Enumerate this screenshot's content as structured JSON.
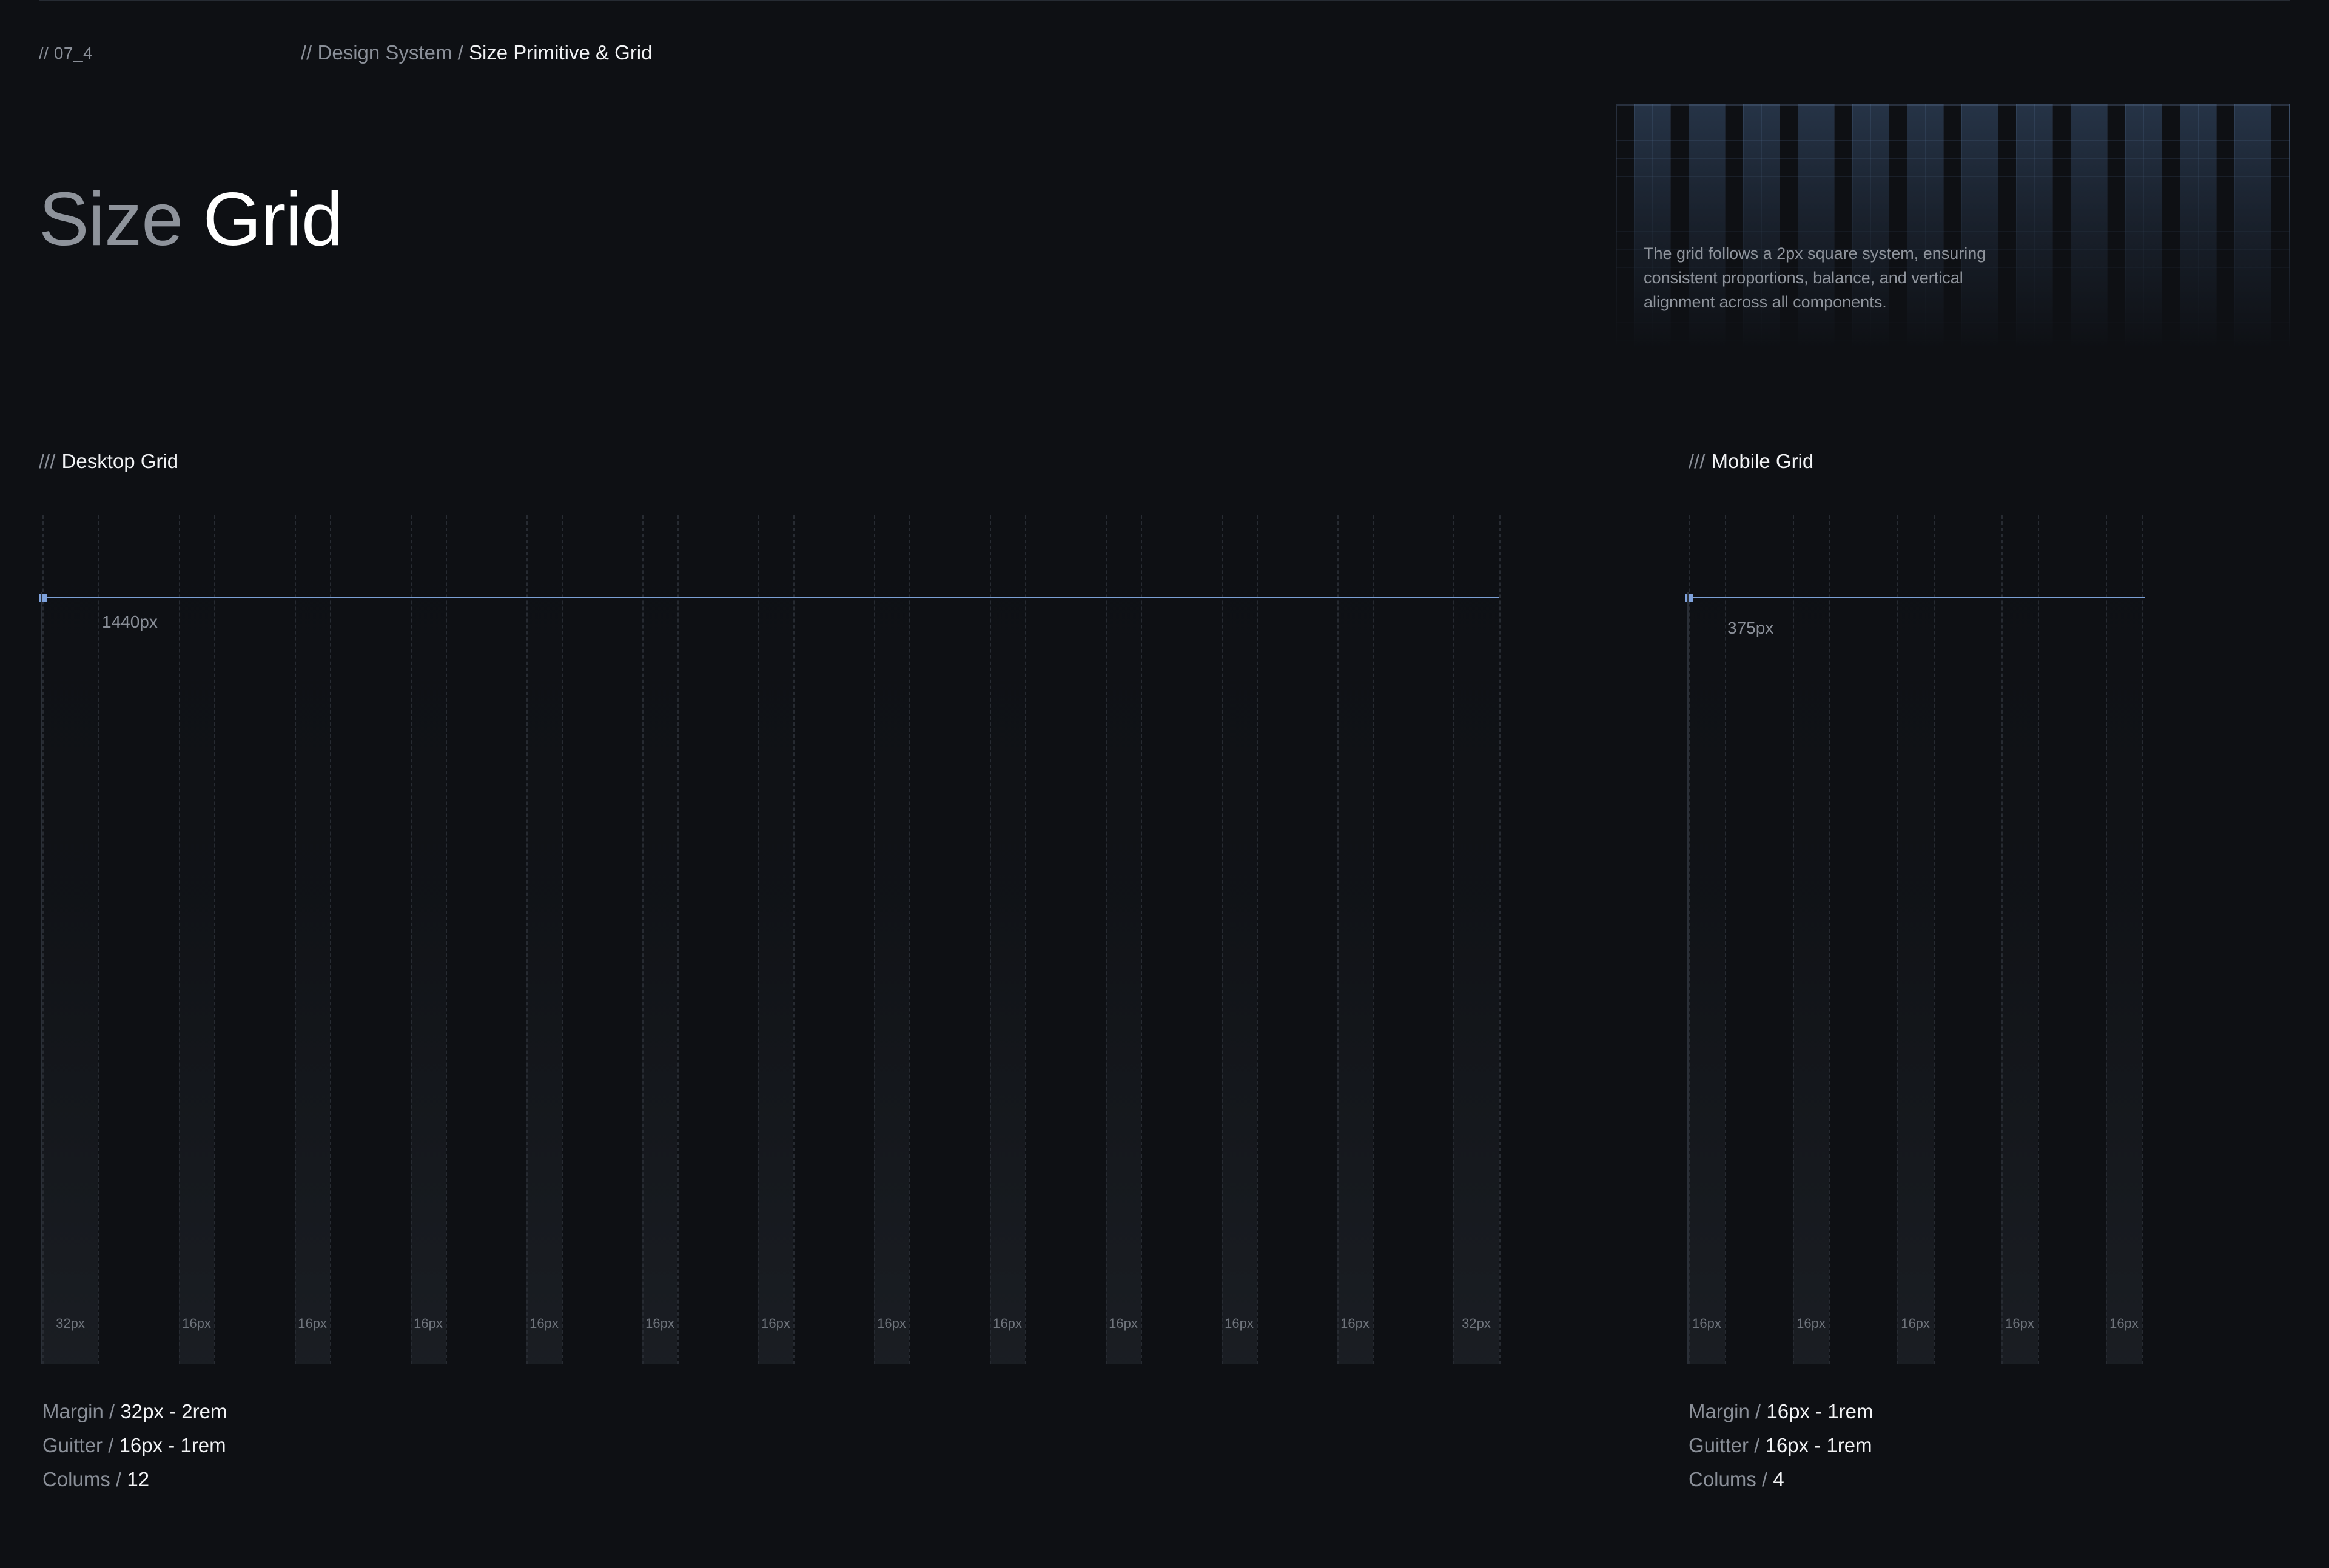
{
  "header": {
    "page_number": "// 07_4",
    "breadcrumb_prefix": "// Design System /",
    "breadcrumb_current": "Size Primitive & Grid"
  },
  "title": {
    "muted": "Size",
    "bright": "Grid"
  },
  "hero": {
    "description": "The grid follows a 2px square system, ensuring consistent proportions, balance, and vertical alignment across all components."
  },
  "desktop": {
    "label_prefix": "///",
    "label": "Desktop Grid",
    "width_label": "1440px",
    "tick_labels": [
      "32px",
      "16px",
      "16px",
      "16px",
      "16px",
      "16px",
      "16px",
      "16px",
      "16px",
      "16px",
      "16px",
      "16px",
      "32px"
    ],
    "specs": [
      {
        "key": "Margin / ",
        "value": "32px - 2rem"
      },
      {
        "key": "Guitter / ",
        "value": "16px - 1rem"
      },
      {
        "key": "Colums / ",
        "value": "12"
      }
    ]
  },
  "mobile": {
    "label_prefix": "///",
    "label": "Mobile Grid",
    "width_label": "375px",
    "tick_labels": [
      "16px",
      "16px",
      "16px",
      "16px",
      "16px"
    ],
    "specs": [
      {
        "key": "Margin / ",
        "value": "16px - 1rem"
      },
      {
        "key": "Guitter / ",
        "value": "16px - 1rem"
      },
      {
        "key": "Colums / ",
        "value": "4"
      }
    ]
  },
  "colors": {
    "background": "#0e1014",
    "accent": "#7b9fd4"
  }
}
